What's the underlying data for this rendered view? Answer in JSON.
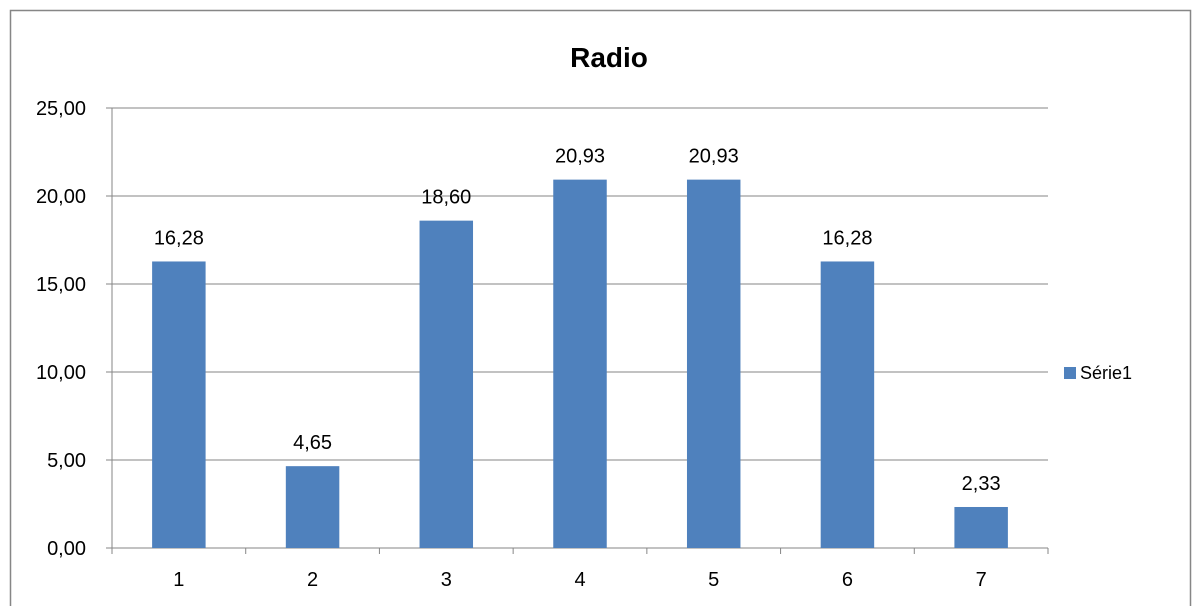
{
  "chart_data": {
    "type": "bar",
    "title": "Radio",
    "xlabel": "",
    "ylabel": "",
    "categories": [
      "1",
      "2",
      "3",
      "4",
      "5",
      "6",
      "7"
    ],
    "series": [
      {
        "name": "Série1",
        "values": [
          16.28,
          4.65,
          18.6,
          20.93,
          20.93,
          16.28,
          2.33
        ],
        "labels": [
          "16,28",
          "4,65",
          "18,60",
          "20,93",
          "20,93",
          "16,28",
          "2,33"
        ],
        "color": "#4f81bd"
      }
    ],
    "ylim": [
      0,
      25
    ],
    "yticks": [
      0,
      5,
      10,
      15,
      20,
      25
    ],
    "ytick_labels": [
      "0,00",
      "5,00",
      "10,00",
      "15,00",
      "20,00",
      "25,00"
    ],
    "grid": true,
    "legend_position": "right"
  },
  "colors": {
    "bar": "#4f81bd",
    "grid": "#868686",
    "border": "#868686",
    "text": "#000000"
  }
}
